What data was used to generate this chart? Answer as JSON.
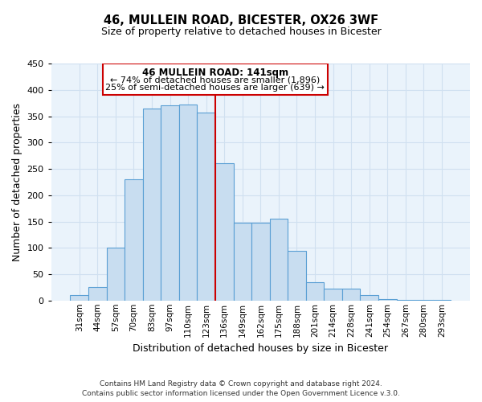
{
  "title": "46, MULLEIN ROAD, BICESTER, OX26 3WF",
  "subtitle": "Size of property relative to detached houses in Bicester",
  "xlabel": "Distribution of detached houses by size in Bicester",
  "ylabel": "Number of detached properties",
  "bar_labels": [
    "31sqm",
    "44sqm",
    "57sqm",
    "70sqm",
    "83sqm",
    "97sqm",
    "110sqm",
    "123sqm",
    "136sqm",
    "149sqm",
    "162sqm",
    "175sqm",
    "188sqm",
    "201sqm",
    "214sqm",
    "228sqm",
    "241sqm",
    "254sqm",
    "267sqm",
    "280sqm",
    "293sqm"
  ],
  "bar_values": [
    10,
    25,
    100,
    230,
    365,
    370,
    372,
    357,
    261,
    147,
    148,
    155,
    95,
    34,
    22,
    22,
    11,
    3,
    1,
    1,
    1
  ],
  "bar_color": "#c8ddf0",
  "bar_edge_color": "#5a9fd4",
  "highlight_index": 8,
  "vline_color": "#cc0000",
  "ylim": [
    0,
    450
  ],
  "yticks": [
    0,
    50,
    100,
    150,
    200,
    250,
    300,
    350,
    400,
    450
  ],
  "annotation_title": "46 MULLEIN ROAD: 141sqm",
  "annotation_line1": "← 74% of detached houses are smaller (1,896)",
  "annotation_line2": "25% of semi-detached houses are larger (639) →",
  "annotation_box_color": "#ffffff",
  "annotation_box_edge": "#cc0000",
  "footer1": "Contains HM Land Registry data © Crown copyright and database right 2024.",
  "footer2": "Contains public sector information licensed under the Open Government Licence v.3.0.",
  "background_color": "#ffffff",
  "plot_bg_color": "#eaf3fb",
  "grid_color": "#d0e0f0"
}
